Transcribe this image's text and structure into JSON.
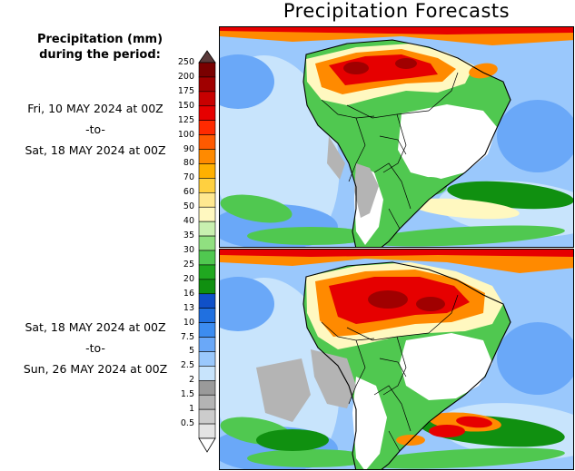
{
  "title": "Precipitation Forecasts",
  "legend": {
    "title_line1": "Precipitation (mm)",
    "title_line2": "during the period:",
    "levels": [
      "250",
      "200",
      "175",
      "150",
      "125",
      "100",
      "90",
      "80",
      "70",
      "60",
      "50",
      "40",
      "35",
      "30",
      "25",
      "20",
      "16",
      "13",
      "10",
      "7.5",
      "5",
      "2.5",
      "2",
      "1.5",
      "1",
      "0.5"
    ],
    "colors": [
      "#7a0000",
      "#a00000",
      "#c80000",
      "#e60000",
      "#ff2a00",
      "#ff5a00",
      "#ff8a00",
      "#ffb000",
      "#ffd040",
      "#ffe890",
      "#fff8c0",
      "#c8f0b0",
      "#90e080",
      "#50c850",
      "#20a820",
      "#109010",
      "#1050c8",
      "#2070e0",
      "#3c8cf0",
      "#6aa8f8",
      "#9ac8fc",
      "#c8e4fc",
      "#9a9a9a",
      "#b4b4b4",
      "#cccccc",
      "#e4e4e4"
    ]
  },
  "panels": [
    {
      "from": "Fri, 10 MAY 2024 at 00Z",
      "sep": "-to-",
      "to": "Sat, 18 MAY 2024 at 00Z"
    },
    {
      "from": "Sat, 18 MAY 2024 at 00Z",
      "sep": "-to-",
      "to": "Sun, 26 MAY 2024 at 00Z"
    }
  ],
  "palette": {
    "ocean_light": "#c8e4fc",
    "ocean_mid": "#9ac8fc",
    "ocean_blue": "#6aa8f8",
    "dry": "#ffffff",
    "gray": "#b4b4b4",
    "green": "#50c850",
    "dark_green": "#109010",
    "yellow": "#fff8c0",
    "orange": "#ff8a00",
    "red": "#e60000",
    "dark_red": "#a00000",
    "border": "#000000"
  }
}
